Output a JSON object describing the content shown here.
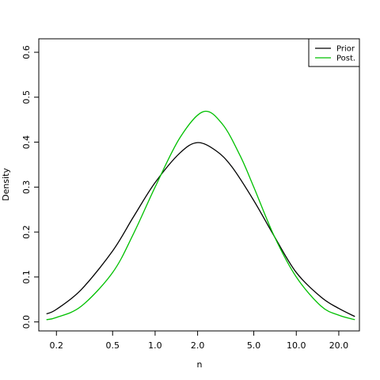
{
  "chart_data": {
    "type": "line",
    "xscale": "log",
    "xlabel": "n",
    "ylabel": "Density",
    "xlim": [
      0.15,
      28
    ],
    "ylim": [
      -0.02,
      0.63
    ],
    "xticks": [
      0.2,
      0.5,
      1.0,
      2.0,
      5.0,
      10.0,
      20.0
    ],
    "xtick_labels": [
      "0.2",
      "0.5",
      "1.0",
      "2.0",
      "5.0",
      "10.0",
      "20.0"
    ],
    "yticks": [
      0.0,
      0.1,
      0.2,
      0.3,
      0.4,
      0.5,
      0.6
    ],
    "ytick_labels": [
      "0.0",
      "0.1",
      "0.2",
      "0.3",
      "0.4",
      "0.5",
      "0.6"
    ],
    "grid": false,
    "legend": "top-right",
    "series": [
      {
        "name": "Prior",
        "color": "#000000",
        "x": [
          0.17,
          0.2,
          0.3,
          0.5,
          0.7,
          1.0,
          1.5,
          2.0,
          2.7,
          3.5,
          5.0,
          7.0,
          10.0,
          15.0,
          20.0,
          26.0
        ],
        "y": [
          0.018,
          0.028,
          0.072,
          0.158,
          0.233,
          0.31,
          0.376,
          0.399,
          0.381,
          0.345,
          0.27,
          0.19,
          0.11,
          0.055,
          0.03,
          0.012
        ]
      },
      {
        "name": "Post.",
        "color": "#00c000",
        "x": [
          0.17,
          0.2,
          0.3,
          0.5,
          0.7,
          1.0,
          1.5,
          2.2,
          3.0,
          4.0,
          5.0,
          7.0,
          10.0,
          15.0,
          20.0,
          26.0
        ],
        "y": [
          0.005,
          0.01,
          0.035,
          0.11,
          0.195,
          0.3,
          0.41,
          0.468,
          0.44,
          0.37,
          0.3,
          0.19,
          0.1,
          0.035,
          0.015,
          0.005
        ]
      }
    ]
  }
}
